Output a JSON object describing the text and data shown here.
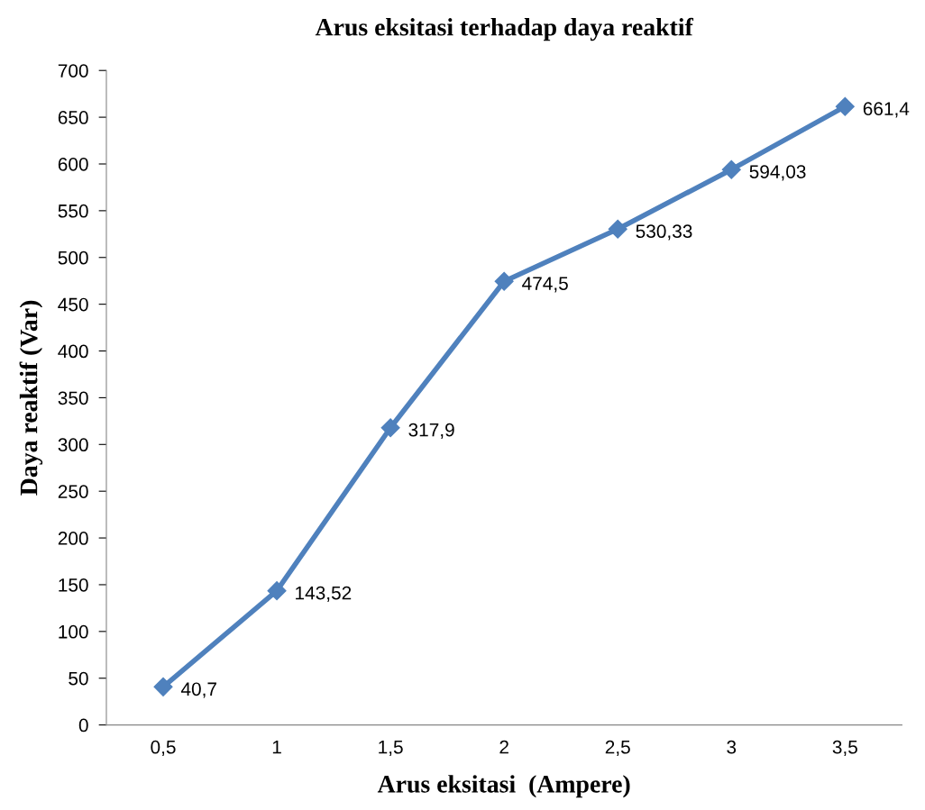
{
  "chart_data": {
    "type": "line",
    "title": "Arus eksitasi terhadap daya reaktif",
    "xlabel": "Arus eksitasi  (Ampere)",
    "ylabel": "Daya reaktif (Var)",
    "categories": [
      "0,5",
      "1",
      "1,5",
      "2",
      "2,5",
      "3",
      "3,5"
    ],
    "series": [
      {
        "color": "#4f81bd",
        "values": [
          40.7,
          143.52,
          317.9,
          474.5,
          530.33,
          594.03,
          661.4
        ],
        "value_labels": [
          "40,7",
          "143,52",
          "317,9",
          "474,5",
          "530,33",
          "594,03",
          "661,4"
        ]
      }
    ],
    "ylim": [
      0,
      700
    ],
    "yticks": [
      0,
      50,
      100,
      150,
      200,
      250,
      300,
      350,
      400,
      450,
      500,
      550,
      600,
      650,
      700
    ],
    "marker": "diamond",
    "line_style": "solid"
  }
}
